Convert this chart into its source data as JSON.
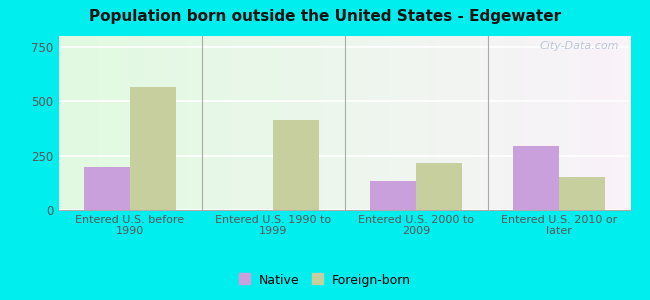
{
  "title": "Population born outside the United States - Edgewater",
  "categories": [
    "Entered U.S. before\n1990",
    "Entered U.S. 1990 to\n1999",
    "Entered U.S. 2000 to\n2009",
    "Entered U.S. 2010 or\nlater"
  ],
  "native_values": [
    200,
    0,
    135,
    295
  ],
  "foreign_values": [
    565,
    415,
    215,
    150
  ],
  "native_color": "#c9a0dc",
  "foreign_color": "#c8cf9e",
  "outer_background": "#00eeee",
  "ylim": [
    0,
    800
  ],
  "yticks": [
    0,
    250,
    500,
    750
  ],
  "bar_width": 0.32,
  "legend_native": "Native",
  "legend_foreign": "Foreign-born",
  "watermark": "City-Data.com"
}
